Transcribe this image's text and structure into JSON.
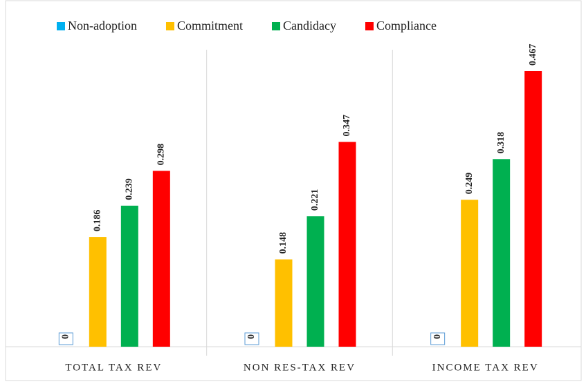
{
  "chart_data": {
    "type": "bar",
    "categories": [
      "TOTAL TAX REV",
      "NON RES-TAX REV",
      "INCOME TAX REV"
    ],
    "series": [
      {
        "name": "Non-adoption",
        "color": "#00b0f0",
        "values": [
          0,
          0,
          0
        ]
      },
      {
        "name": "Commitment",
        "color": "#ffc000",
        "values": [
          0.186,
          0.148,
          0.249
        ]
      },
      {
        "name": "Candidacy",
        "color": "#00b050",
        "values": [
          0.239,
          0.221,
          0.318
        ]
      },
      {
        "name": "Compliance",
        "color": "#ff0000",
        "values": [
          0.298,
          0.347,
          0.467
        ]
      }
    ]
  }
}
